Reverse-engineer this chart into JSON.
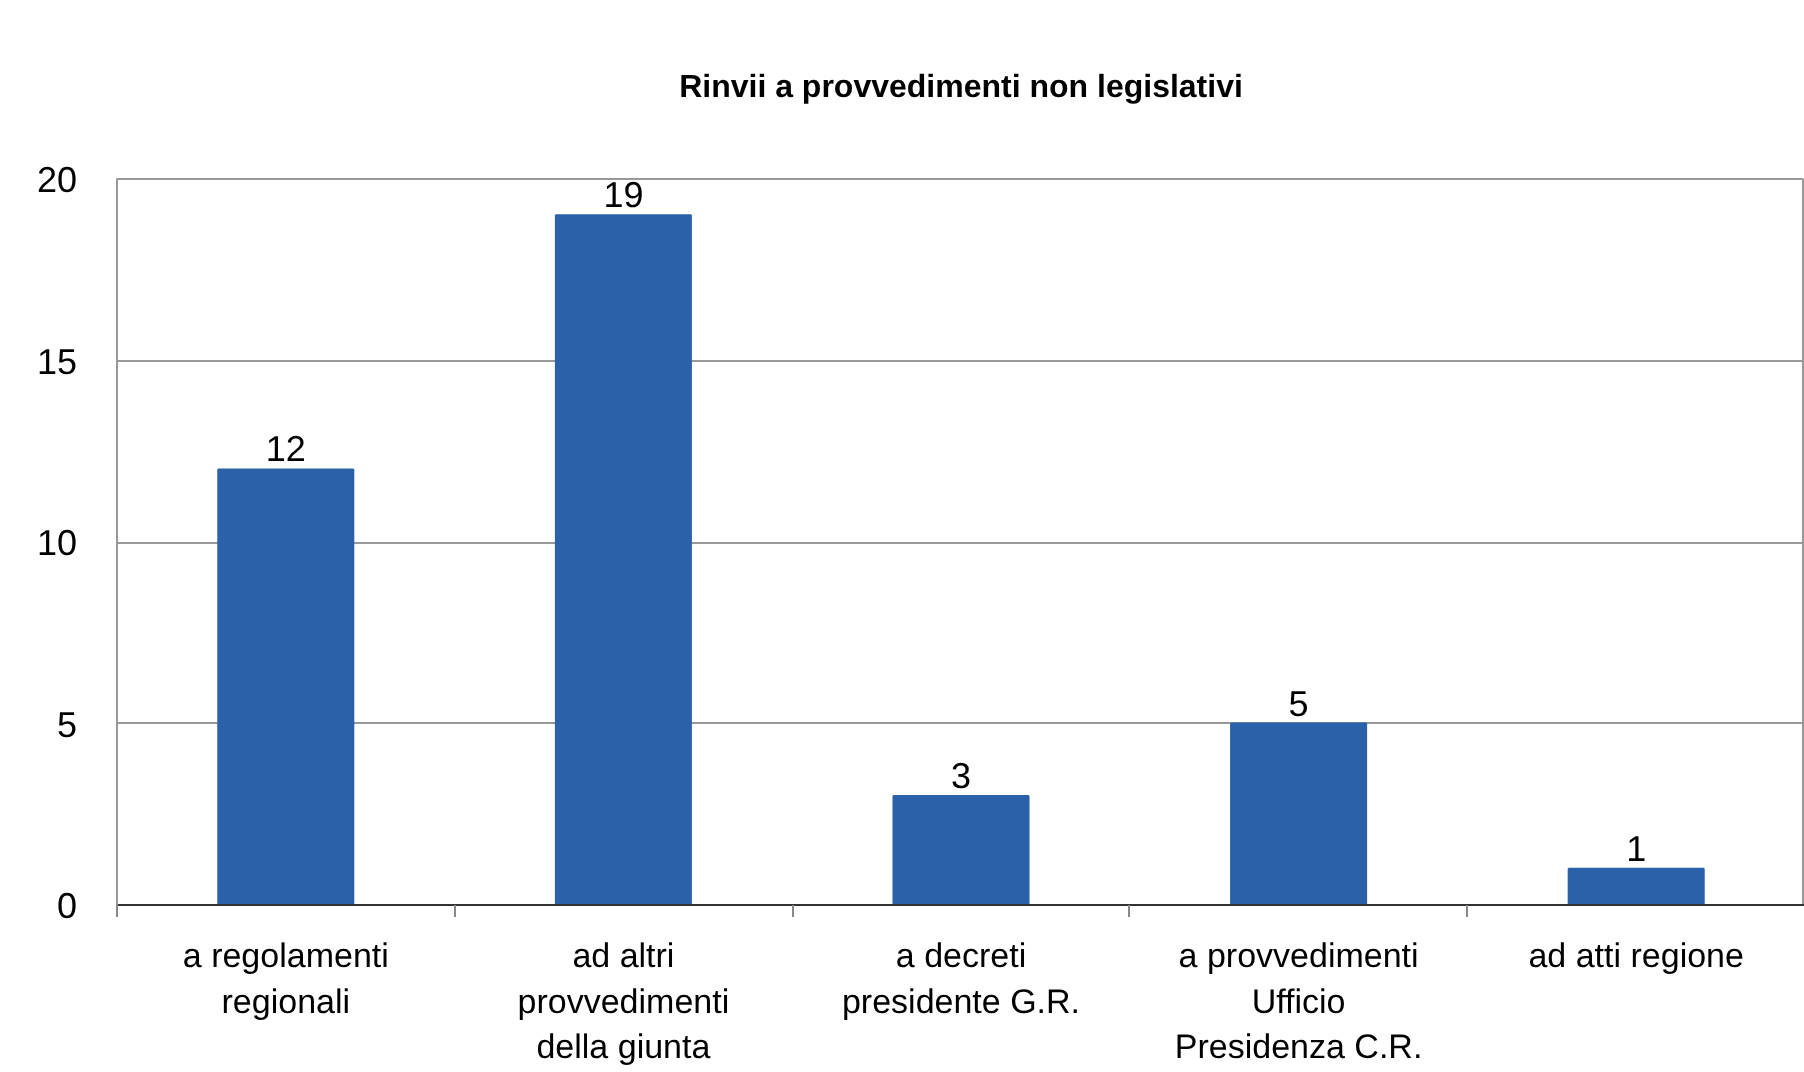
{
  "chart_data": {
    "type": "bar",
    "title": "Rinvii a provvedimenti non legislativi",
    "categories": [
      "a regolamenti regionali",
      "ad altri provvedimenti della giunta",
      "a decreti presidente G.R.",
      "a provvedimenti Ufficio Presidenza C.R.",
      "ad atti regione"
    ],
    "values": [
      12,
      19,
      3,
      5,
      1
    ],
    "color": "#2b61a9",
    "ylim": [
      0,
      20
    ],
    "yticks": [
      0,
      5,
      10,
      15,
      20
    ],
    "grid": "y",
    "data_labels": true
  }
}
